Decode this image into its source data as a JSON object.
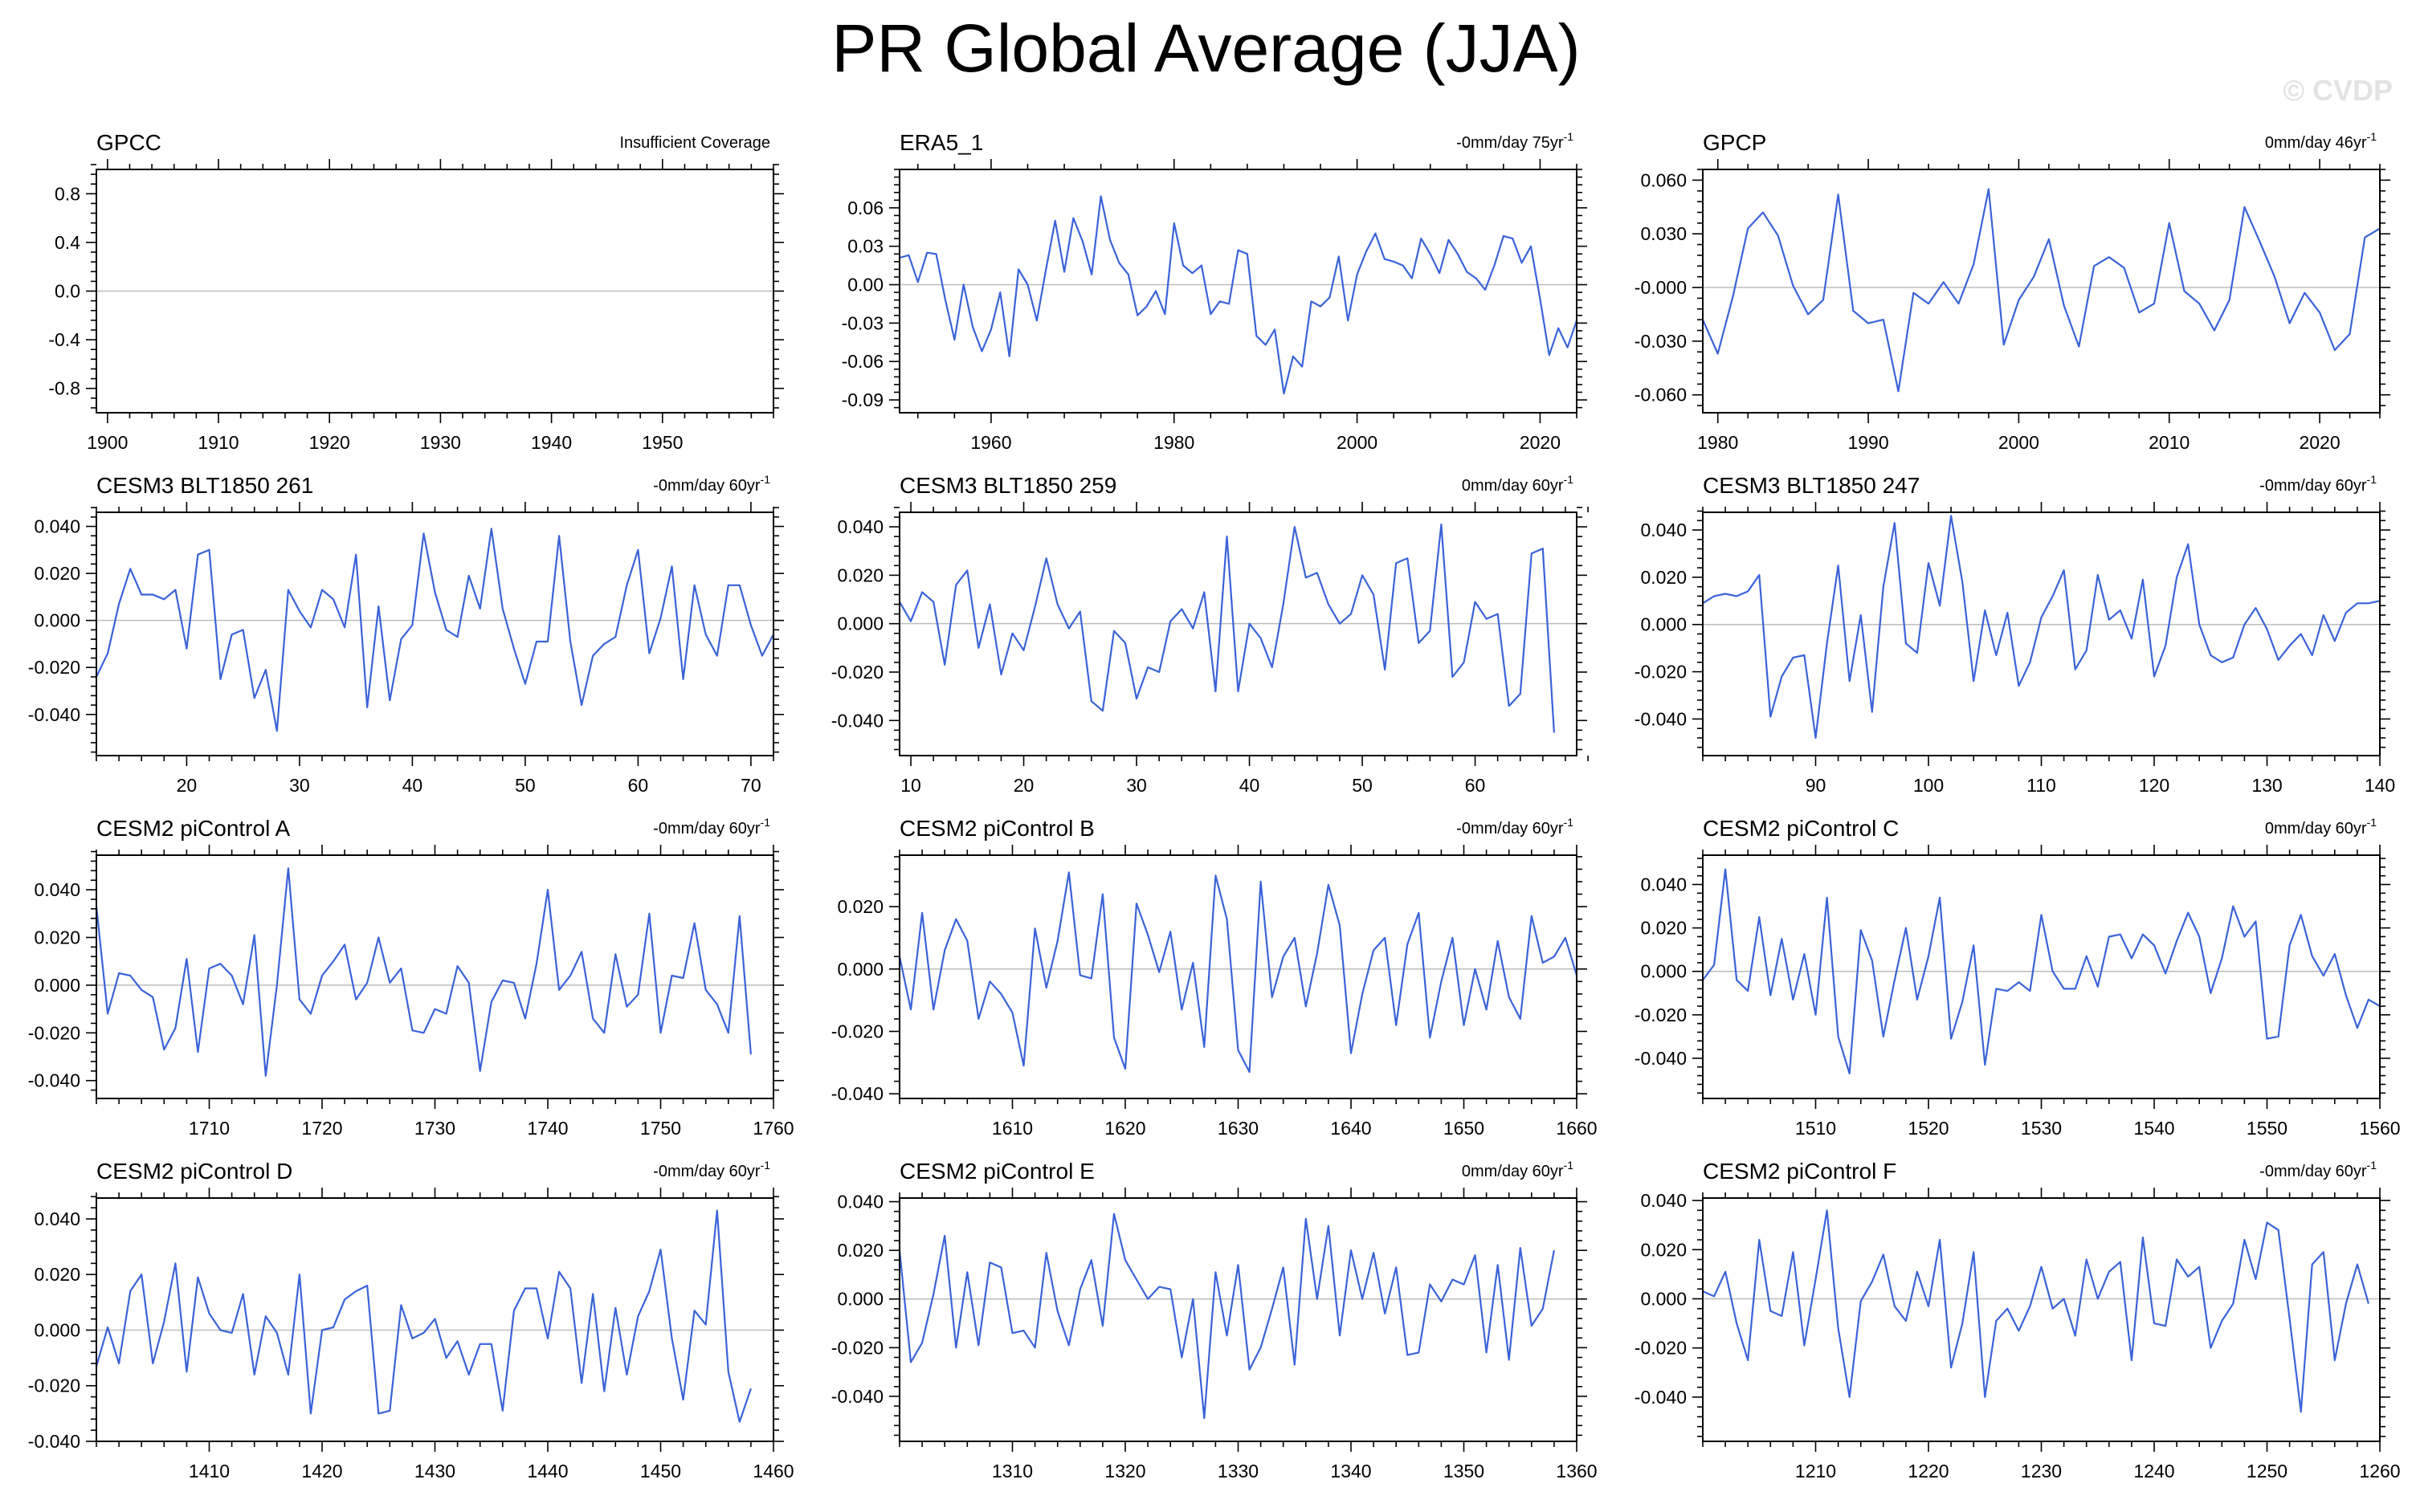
{
  "title": "PR Global Average (JJA)",
  "watermark": "© CVDP",
  "series_color": "#3a63d8",
  "chart_data": [
    {
      "type": "line",
      "title": "GPCC",
      "annotation": "Insufficient Coverage",
      "annotation_sup": "",
      "ylim": [
        -1,
        1
      ],
      "yticks": [
        -0.8,
        -0.4,
        0.0,
        0.4,
        0.8
      ],
      "ytick_labels": [
        "-0.8",
        "-0.4",
        "0.0",
        "0.4",
        "0.8"
      ],
      "xlim": [
        1899,
        1960
      ],
      "xticks": [
        1900,
        1910,
        1920,
        1930,
        1940,
        1950
      ],
      "x": [],
      "values": []
    },
    {
      "type": "line",
      "title": "ERA5_1",
      "annotation": "-0mm/day 75yr",
      "annotation_sup": "-1",
      "ylim": [
        -0.1,
        0.09
      ],
      "yticks": [
        -0.09,
        -0.06,
        -0.03,
        0.0,
        0.03,
        0.06
      ],
      "ytick_labels": [
        "-0.09",
        "-0.06",
        "-0.03",
        "0.00",
        "0.03",
        "0.06"
      ],
      "xlim": [
        1950,
        2024
      ],
      "xticks": [
        1960,
        1980,
        2000,
        2020
      ],
      "x_start": 1950,
      "values": [
        0.021,
        0.023,
        0.002,
        0.025,
        0.024,
        -0.012,
        -0.043,
        0.0,
        -0.033,
        -0.052,
        -0.035,
        -0.006,
        -0.056,
        0.012,
        0.0,
        -0.028,
        0.012,
        0.05,
        0.01,
        0.052,
        0.034,
        0.008,
        0.069,
        0.035,
        0.017,
        0.008,
        -0.024,
        -0.017,
        -0.005,
        -0.023,
        0.048,
        0.015,
        0.009,
        0.015,
        -0.023,
        -0.013,
        -0.015,
        0.027,
        0.024,
        -0.04,
        -0.047,
        -0.035,
        -0.085,
        -0.056,
        -0.064,
        -0.013,
        -0.017,
        -0.01,
        0.022,
        -0.028,
        0.008,
        0.026,
        0.04,
        0.02,
        0.018,
        0.015,
        0.005,
        0.036,
        0.024,
        0.009,
        0.035,
        0.024,
        0.01,
        0.005,
        -0.004,
        0.015,
        0.038,
        0.036,
        0.017,
        0.03,
        -0.011,
        -0.055,
        -0.034,
        -0.049,
        -0.028
      ]
    },
    {
      "type": "line",
      "title": "GPCP",
      "annotation": "0mm/day 46yr",
      "annotation_sup": "-1",
      "ylim": [
        -0.07,
        0.066
      ],
      "yticks": [
        -0.06,
        -0.03,
        0.0,
        0.03,
        0.06
      ],
      "ytick_labels": [
        "-0.060",
        "-0.030",
        "-0.000",
        "0.030",
        "0.060"
      ],
      "xlim": [
        1979,
        2024
      ],
      "xticks": [
        1980,
        1990,
        2000,
        2010,
        2020
      ],
      "x_start": 1979,
      "values": [
        -0.018,
        -0.037,
        -0.005,
        0.033,
        0.042,
        0.029,
        0.001,
        -0.015,
        -0.007,
        0.052,
        -0.013,
        -0.02,
        -0.018,
        -0.058,
        -0.003,
        -0.009,
        0.003,
        -0.009,
        0.013,
        0.055,
        -0.032,
        -0.007,
        0.006,
        0.027,
        -0.01,
        -0.033,
        0.012,
        0.017,
        0.011,
        -0.014,
        -0.009,
        0.036,
        -0.002,
        -0.009,
        -0.024,
        -0.007,
        0.045,
        0.026,
        0.006,
        -0.02,
        -0.003,
        -0.014,
        -0.035,
        -0.026,
        0.028,
        0.033
      ]
    },
    {
      "type": "line",
      "title": "CESM3 BLT1850 261",
      "annotation": "-0mm/day 60yr",
      "annotation_sup": "-1",
      "ylim": [
        -0.0575,
        0.046
      ],
      "yticks": [
        -0.04,
        -0.02,
        0.0,
        0.02,
        0.04
      ],
      "ytick_labels": [
        "-0.040",
        "-0.020",
        "0.000",
        "0.020",
        "0.040"
      ],
      "xlim": [
        12,
        72
      ],
      "xticks": [
        20,
        30,
        40,
        50,
        60,
        70
      ],
      "x_start": 12,
      "values": [
        -0.024,
        -0.014,
        0.007,
        0.022,
        0.011,
        0.011,
        0.009,
        0.013,
        -0.012,
        0.028,
        0.03,
        -0.025,
        -0.006,
        -0.004,
        -0.033,
        -0.021,
        -0.047,
        0.013,
        0.004,
        -0.003,
        0.013,
        0.009,
        -0.003,
        0.028,
        -0.037,
        0.006,
        -0.034,
        -0.008,
        -0.002,
        0.037,
        0.012,
        -0.004,
        -0.007,
        0.019,
        0.005,
        0.039,
        0.005,
        -0.012,
        -0.027,
        -0.009,
        -0.009,
        0.036,
        -0.009,
        -0.036,
        -0.015,
        -0.01,
        -0.007,
        0.015,
        0.03,
        -0.014,
        0.001,
        0.023,
        -0.025,
        0.015,
        -0.006,
        -0.015,
        0.015,
        0.015,
        -0.002,
        -0.015,
        -0.006
      ]
    },
    {
      "type": "line",
      "title": "CESM3 BLT1850 259",
      "annotation": "0mm/day 60yr",
      "annotation_sup": "-1",
      "ylim": [
        -0.0545,
        0.046
      ],
      "yticks": [
        -0.04,
        -0.02,
        0.0,
        0.02,
        0.04
      ],
      "ytick_labels": [
        "-0.040",
        "-0.020",
        "0.000",
        "0.020",
        "0.040"
      ],
      "xlim": [
        9,
        69
      ],
      "xticks": [
        10,
        20,
        30,
        40,
        50,
        60
      ],
      "x_start": 9,
      "values": [
        0.009,
        0.001,
        0.013,
        0.009,
        -0.017,
        0.016,
        0.022,
        -0.01,
        0.008,
        -0.021,
        -0.004,
        -0.011,
        0.007,
        0.027,
        0.008,
        -0.002,
        0.005,
        -0.032,
        -0.036,
        -0.003,
        -0.008,
        -0.031,
        -0.018,
        -0.02,
        0.001,
        0.006,
        -0.002,
        0.013,
        -0.028,
        0.036,
        -0.028,
        0.0,
        -0.006,
        -0.018,
        0.008,
        0.04,
        0.019,
        0.021,
        0.008,
        0.0,
        0.004,
        0.02,
        0.012,
        -0.019,
        0.025,
        0.027,
        -0.008,
        -0.003,
        0.041,
        -0.022,
        -0.016,
        0.009,
        0.002,
        0.004,
        -0.034,
        -0.029,
        0.029,
        0.031,
        -0.045
      ]
    },
    {
      "type": "line",
      "title": "CESM3 BLT1850 247",
      "annotation": "-0mm/day 60yr",
      "annotation_sup": "-1",
      "ylim": [
        -0.0555,
        0.0475
      ],
      "yticks": [
        -0.04,
        -0.02,
        0.0,
        0.02,
        0.04
      ],
      "ytick_labels": [
        "-0.040",
        "-0.020",
        "0.000",
        "0.020",
        "0.040"
      ],
      "xlim": [
        80,
        140
      ],
      "xticks": [
        90,
        100,
        110,
        120,
        130,
        140
      ],
      "x_start": 80,
      "values": [
        0.009,
        0.012,
        0.013,
        0.012,
        0.014,
        0.021,
        -0.039,
        -0.022,
        -0.014,
        -0.013,
        -0.048,
        -0.008,
        0.025,
        -0.024,
        0.004,
        -0.037,
        0.016,
        0.043,
        -0.008,
        -0.012,
        0.026,
        0.008,
        0.046,
        0.018,
        -0.024,
        0.006,
        -0.013,
        0.005,
        -0.026,
        -0.016,
        0.003,
        0.012,
        0.023,
        -0.019,
        -0.011,
        0.021,
        0.002,
        0.006,
        -0.006,
        0.019,
        -0.022,
        -0.009,
        0.02,
        0.034,
        0.0,
        -0.013,
        -0.016,
        -0.014,
        0.0,
        0.007,
        -0.002,
        -0.015,
        -0.009,
        -0.004,
        -0.013,
        0.004,
        -0.007,
        0.005,
        0.009,
        0.009,
        0.01
      ]
    },
    {
      "type": "line",
      "title": "CESM2 piControl A",
      "annotation": "-0mm/day 60yr",
      "annotation_sup": "-1",
      "ylim": [
        -0.0475,
        0.0545
      ],
      "yticks": [
        -0.04,
        -0.02,
        0.0,
        0.02,
        0.04
      ],
      "ytick_labels": [
        "-0.040",
        "-0.020",
        "0.000",
        "0.020",
        "0.040"
      ],
      "xlim": [
        1700,
        1760
      ],
      "xticks": [
        1710,
        1720,
        1730,
        1740,
        1750,
        1760
      ],
      "x_start": 1700,
      "values": [
        0.033,
        -0.012,
        0.005,
        0.004,
        -0.002,
        -0.005,
        -0.027,
        -0.018,
        0.011,
        -0.028,
        0.007,
        0.009,
        0.004,
        -0.008,
        0.021,
        -0.038,
        0.0,
        0.049,
        -0.006,
        -0.012,
        0.004,
        0.01,
        0.017,
        -0.006,
        0.001,
        0.02,
        0.001,
        0.007,
        -0.019,
        -0.02,
        -0.01,
        -0.012,
        0.008,
        0.001,
        -0.036,
        -0.007,
        0.002,
        0.001,
        -0.014,
        0.009,
        0.04,
        -0.002,
        0.004,
        0.014,
        -0.014,
        -0.02,
        0.013,
        -0.009,
        -0.004,
        0.03,
        -0.02,
        0.004,
        0.003,
        0.026,
        -0.002,
        -0.008,
        -0.02,
        0.029,
        -0.029
      ]
    },
    {
      "type": "line",
      "title": "CESM2 piControl B",
      "annotation": "-0mm/day 60yr",
      "annotation_sup": "-1",
      "ylim": [
        -0.0415,
        0.0365
      ],
      "yticks": [
        -0.04,
        -0.02,
        0.0,
        0.02
      ],
      "ytick_labels": [
        "-0.040",
        "-0.020",
        "0.000",
        "0.020"
      ],
      "xlim": [
        1600,
        1660
      ],
      "xticks": [
        1610,
        1620,
        1630,
        1640,
        1650,
        1660
      ],
      "x_start": 1600,
      "values": [
        0.004,
        -0.013,
        0.018,
        -0.013,
        0.006,
        0.016,
        0.009,
        -0.016,
        -0.004,
        -0.008,
        -0.014,
        -0.031,
        0.013,
        -0.006,
        0.009,
        0.031,
        -0.002,
        -0.003,
        0.024,
        -0.022,
        -0.032,
        0.021,
        0.011,
        -0.001,
        0.012,
        -0.013,
        0.002,
        -0.025,
        0.03,
        0.016,
        -0.026,
        -0.033,
        0.028,
        -0.009,
        0.004,
        0.01,
        -0.012,
        0.005,
        0.027,
        0.014,
        -0.027,
        -0.008,
        0.006,
        0.01,
        -0.018,
        0.008,
        0.018,
        -0.022,
        -0.004,
        0.01,
        -0.018,
        0.0,
        -0.013,
        0.009,
        -0.009,
        -0.016,
        0.017,
        0.002,
        0.004,
        0.01,
        -0.002
      ]
    },
    {
      "type": "line",
      "title": "CESM2 piControl C",
      "annotation": "0mm/day 60yr",
      "annotation_sup": "-1",
      "ylim": [
        -0.0585,
        0.0535
      ],
      "yticks": [
        -0.04,
        -0.02,
        0.0,
        0.02,
        0.04
      ],
      "ytick_labels": [
        "-0.040",
        "-0.020",
        "0.000",
        "0.020",
        "0.040"
      ],
      "xlim": [
        1500,
        1560
      ],
      "xticks": [
        1510,
        1520,
        1530,
        1540,
        1550,
        1560
      ],
      "x_start": 1500,
      "values": [
        -0.004,
        0.003,
        0.047,
        -0.004,
        -0.009,
        0.025,
        -0.011,
        0.015,
        -0.013,
        0.008,
        -0.02,
        0.034,
        -0.03,
        -0.047,
        0.019,
        0.005,
        -0.03,
        -0.004,
        0.02,
        -0.013,
        0.007,
        0.034,
        -0.031,
        -0.014,
        0.012,
        -0.043,
        -0.008,
        -0.009,
        -0.005,
        -0.009,
        0.026,
        0.0,
        -0.008,
        -0.008,
        0.007,
        -0.007,
        0.016,
        0.017,
        0.006,
        0.017,
        0.012,
        -0.001,
        0.014,
        0.027,
        0.016,
        -0.01,
        0.006,
        0.03,
        0.016,
        0.023,
        -0.031,
        -0.03,
        0.012,
        0.026,
        0.007,
        -0.002,
        0.008,
        -0.011,
        -0.026,
        -0.013,
        -0.016
      ]
    },
    {
      "type": "line",
      "title": "CESM2 piControl D",
      "annotation": "-0mm/day 60yr",
      "annotation_sup": "-1",
      "ylim": [
        -0.04,
        0.0475
      ],
      "yticks": [
        -0.04,
        -0.02,
        0.0,
        0.02,
        0.04
      ],
      "ytick_labels": [
        "-0.040",
        "-0.020",
        "0.000",
        "0.020",
        "0.040"
      ],
      "xlim": [
        1400,
        1460
      ],
      "xticks": [
        1410,
        1420,
        1430,
        1440,
        1450,
        1460
      ],
      "x_start": 1400,
      "values": [
        -0.013,
        0.001,
        -0.012,
        0.014,
        0.02,
        -0.012,
        0.003,
        0.024,
        -0.015,
        0.019,
        0.006,
        0.0,
        -0.001,
        0.013,
        -0.016,
        0.005,
        -0.001,
        -0.016,
        0.02,
        -0.03,
        0.0,
        0.001,
        0.011,
        0.014,
        0.016,
        -0.03,
        -0.029,
        0.009,
        -0.003,
        -0.001,
        0.004,
        -0.01,
        -0.004,
        -0.016,
        -0.005,
        -0.005,
        -0.029,
        0.007,
        0.015,
        0.015,
        -0.003,
        0.021,
        0.015,
        -0.019,
        0.013,
        -0.022,
        0.008,
        -0.016,
        0.005,
        0.014,
        0.029,
        -0.003,
        -0.025,
        0.007,
        0.002,
        0.043,
        -0.015,
        -0.033,
        -0.021
      ]
    },
    {
      "type": "line",
      "title": "CESM2 piControl E",
      "annotation": "0mm/day 60yr",
      "annotation_sup": "-1",
      "ylim": [
        -0.0585,
        0.0415
      ],
      "yticks": [
        -0.04,
        -0.02,
        0.0,
        0.02,
        0.04
      ],
      "ytick_labels": [
        "-0.040",
        "-0.020",
        "0.000",
        "0.020",
        "0.040"
      ],
      "xlim": [
        1300,
        1360
      ],
      "xticks": [
        1310,
        1320,
        1330,
        1340,
        1350,
        1360
      ],
      "x_start": 1300,
      "values": [
        0.02,
        -0.026,
        -0.018,
        0.002,
        0.026,
        -0.02,
        0.011,
        -0.019,
        0.015,
        0.013,
        -0.014,
        -0.013,
        -0.02,
        0.019,
        -0.005,
        -0.019,
        0.004,
        0.016,
        -0.011,
        0.035,
        0.016,
        0.008,
        0.0,
        0.005,
        0.004,
        -0.024,
        0.0,
        -0.049,
        0.011,
        -0.015,
        0.014,
        -0.029,
        -0.02,
        -0.004,
        0.013,
        -0.027,
        0.033,
        0.0,
        0.03,
        -0.015,
        0.02,
        0.0,
        0.019,
        -0.006,
        0.013,
        -0.023,
        -0.022,
        0.006,
        -0.001,
        0.008,
        0.006,
        0.018,
        -0.022,
        0.014,
        -0.025,
        0.021,
        -0.011,
        -0.004,
        0.02
      ]
    },
    {
      "type": "line",
      "title": "CESM2 piControl F",
      "annotation": "-0mm/day 60yr",
      "annotation_sup": "-1",
      "ylim": [
        -0.058,
        0.041
      ],
      "yticks": [
        -0.04,
        -0.02,
        0.0,
        0.02,
        0.04
      ],
      "ytick_labels": [
        "-0.040",
        "-0.020",
        "0.000",
        "0.020",
        "0.040"
      ],
      "xlim": [
        1200,
        1260
      ],
      "xticks": [
        1210,
        1220,
        1230,
        1240,
        1250,
        1260
      ],
      "x_start": 1200,
      "values": [
        0.003,
        0.001,
        0.011,
        -0.01,
        -0.025,
        0.024,
        -0.005,
        -0.007,
        0.019,
        -0.019,
        0.008,
        0.036,
        -0.012,
        -0.04,
        -0.001,
        0.007,
        0.018,
        -0.003,
        -0.009,
        0.011,
        -0.003,
        0.024,
        -0.028,
        -0.01,
        0.019,
        -0.04,
        -0.009,
        -0.004,
        -0.013,
        -0.003,
        0.013,
        -0.004,
        0.0,
        -0.015,
        0.016,
        0.0,
        0.011,
        0.015,
        -0.025,
        0.025,
        -0.01,
        -0.011,
        0.016,
        0.009,
        0.013,
        -0.02,
        -0.009,
        -0.002,
        0.024,
        0.008,
        0.031,
        0.028,
        -0.008,
        -0.046,
        0.014,
        0.019,
        -0.025,
        -0.002,
        0.014,
        -0.002
      ]
    }
  ]
}
